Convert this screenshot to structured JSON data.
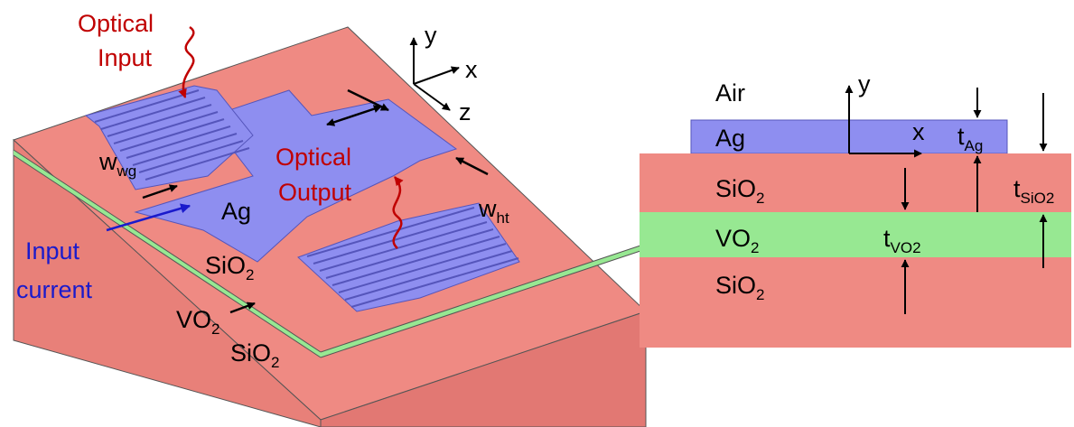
{
  "colors": {
    "sio2": "#ef8a83",
    "sio2_side": "#e88079",
    "sio2_front": "#e27873",
    "vo2": "#97e892",
    "ag": "#8e8ef0",
    "ag_dark": "#6f6fd8",
    "red_text": "#c00000",
    "blue_text": "#1a1acc",
    "arrow": "#000000"
  },
  "left_figure": {
    "optical_input": {
      "line1": "Optical",
      "line2": "Input"
    },
    "optical_output": {
      "line1": "Optical",
      "line2": "Output"
    },
    "input_current": {
      "line1": "Input",
      "line2": "current"
    },
    "ag_label": "Ag",
    "sio2_top": {
      "base": "SiO",
      "sub": "2"
    },
    "vo2": {
      "base": "VO",
      "sub": "2"
    },
    "sio2_bottom": {
      "base": "SiO",
      "sub": "2"
    },
    "w_wg": {
      "base": "w",
      "sub": "wg"
    },
    "w_ht": {
      "base": "w",
      "sub": "ht"
    },
    "axes": {
      "y": "y",
      "x": "x",
      "z": "z"
    }
  },
  "right_figure": {
    "air": "Air",
    "ag": "Ag",
    "sio2_top": {
      "base": "SiO",
      "sub": "2"
    },
    "vo2": {
      "base": "VO",
      "sub": "2"
    },
    "sio2_bottom": {
      "base": "SiO",
      "sub": "2"
    },
    "t_ag": {
      "base": "t",
      "sub": "Ag"
    },
    "t_vo2": {
      "base": "t",
      "sub": "VO2"
    },
    "t_sio2": {
      "base": "t",
      "sub": "SiO2"
    },
    "axes": {
      "y": "y",
      "x": "x"
    }
  }
}
